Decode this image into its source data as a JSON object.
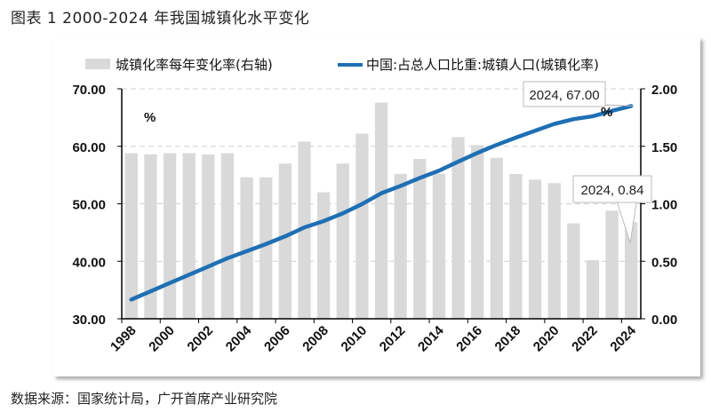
{
  "title": "图表 1 2000-2024 年我国城镇化水平变化",
  "source": "数据来源：国家统计局，广开首席产业研究院",
  "chart_data": {
    "type": "bar+line",
    "categories": [
      1998,
      1999,
      2000,
      2001,
      2002,
      2003,
      2004,
      2005,
      2006,
      2007,
      2008,
      2009,
      2010,
      2011,
      2012,
      2013,
      2014,
      2015,
      2016,
      2017,
      2018,
      2019,
      2020,
      2021,
      2022,
      2023,
      2024
    ],
    "x_tick_labels": [
      "1998",
      "2000",
      "2002",
      "2004",
      "2006",
      "2008",
      "2010",
      "2012",
      "2014",
      "2016",
      "2018",
      "2020",
      "2022",
      "2024"
    ],
    "left_axis": {
      "ylim": [
        30,
        70
      ],
      "ticks": [
        "30.00",
        "40.00",
        "50.00",
        "60.00",
        "70.00"
      ],
      "unit": "%"
    },
    "right_axis": {
      "ylim": [
        0,
        2
      ],
      "ticks": [
        "0.00",
        "0.50",
        "1.00",
        "1.50",
        "2.00"
      ],
      "unit": "%"
    },
    "grid": "horizontal dashed",
    "legend_placement": "top",
    "series": [
      {
        "name": "城镇化率每年变化率(右轴)",
        "type": "bar",
        "axis": "right",
        "color": "#d9d9d9",
        "values": [
          1.44,
          1.43,
          1.44,
          1.44,
          1.43,
          1.44,
          1.23,
          1.23,
          1.35,
          1.54,
          1.1,
          1.35,
          1.61,
          1.88,
          1.26,
          1.39,
          1.26,
          1.58,
          1.51,
          1.4,
          1.26,
          1.21,
          1.18,
          0.83,
          0.51,
          0.94,
          0.84
        ]
      },
      {
        "name": "中国:占总人口比重:城镇人口(城镇化率)",
        "type": "line",
        "axis": "left",
        "color": "#1f6fb4",
        "values": [
          33.35,
          34.78,
          36.22,
          37.66,
          39.09,
          40.53,
          41.76,
          42.99,
          44.34,
          45.89,
          46.99,
          48.34,
          49.95,
          51.83,
          53.1,
          54.49,
          55.75,
          57.33,
          58.84,
          60.24,
          61.5,
          62.71,
          63.89,
          64.72,
          65.22,
          66.16,
          67.0
        ]
      }
    ],
    "annotations": [
      {
        "text": "2024, 67.00",
        "target": "line-2024"
      },
      {
        "text": "2024, 0.84",
        "target": "bar-2024"
      }
    ]
  }
}
